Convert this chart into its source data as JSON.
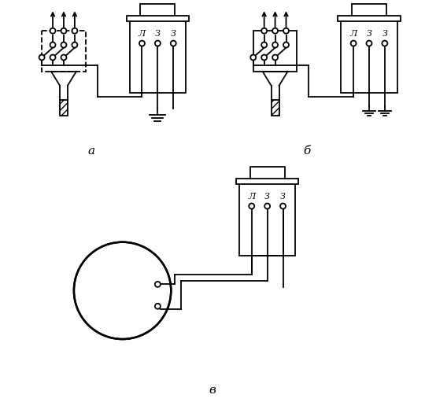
{
  "bg_color": "#ffffff",
  "line_color": "#000000",
  "figsize": [
    5.4,
    5.11
  ],
  "dpi": 100,
  "label_a": "а",
  "label_b": "б",
  "label_v": "в",
  "labels_LZZ": [
    "Л",
    "З",
    "З"
  ]
}
